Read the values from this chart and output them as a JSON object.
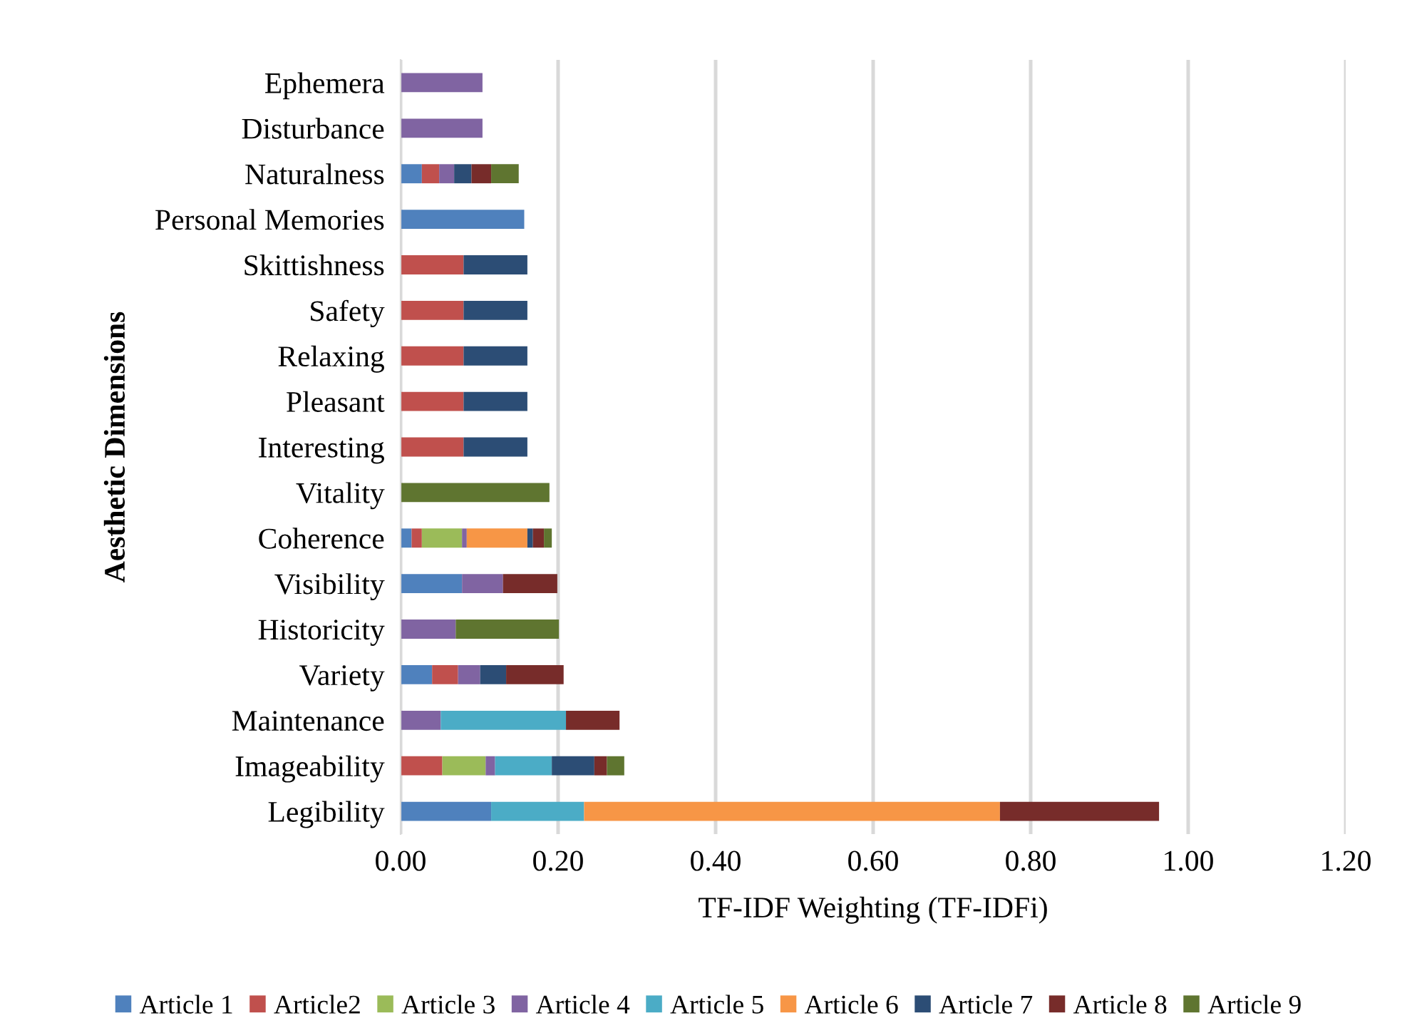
{
  "chart_data": {
    "type": "bar",
    "orientation": "horizontal",
    "stacked": true,
    "xlabel": "TF-IDF Weighting (TF-IDFi)",
    "ylabel": "Aesthetic Dimensions",
    "categories": [
      "Ephemera",
      "Disturbance",
      "Naturalness",
      "Personal Memories",
      "Skittishness",
      "Safety",
      "Relaxing",
      "Pleasant",
      "Interesting",
      "Vitality",
      "Coherence",
      "Visibility",
      "Historicity",
      "Variety",
      "Maintenance",
      "Imageability",
      "Legibility"
    ],
    "series": [
      {
        "name": "Article 1",
        "color": "#4f81bd",
        "values": [
          null,
          null,
          0.027,
          0.157,
          null,
          null,
          null,
          null,
          null,
          null,
          0.014,
          0.078,
          null,
          0.04,
          null,
          null,
          0.115
        ]
      },
      {
        "name": "Article2",
        "color": "#c0504d",
        "values": [
          null,
          null,
          0.022,
          null,
          0.08,
          0.08,
          0.08,
          0.08,
          0.08,
          null,
          0.013,
          null,
          null,
          0.033,
          null,
          0.053,
          null
        ]
      },
      {
        "name": "Article 3",
        "color": "#9bbb59",
        "values": [
          null,
          null,
          null,
          null,
          null,
          null,
          null,
          null,
          null,
          null,
          0.051,
          null,
          null,
          null,
          null,
          0.055,
          null
        ]
      },
      {
        "name": "Article 4",
        "color": "#8064a2",
        "values": [
          0.104,
          0.104,
          0.019,
          null,
          null,
          null,
          null,
          null,
          null,
          null,
          0.006,
          0.052,
          0.07,
          0.028,
          0.051,
          0.012,
          null
        ]
      },
      {
        "name": "Article 5",
        "color": "#4bacc6",
        "values": [
          null,
          null,
          null,
          null,
          null,
          null,
          null,
          null,
          null,
          null,
          null,
          null,
          null,
          null,
          0.159,
          0.072,
          0.118
        ]
      },
      {
        "name": "Article 6",
        "color": "#f79646",
        "values": [
          null,
          null,
          null,
          null,
          null,
          null,
          null,
          null,
          null,
          null,
          0.077,
          null,
          null,
          null,
          null,
          null,
          0.528
        ]
      },
      {
        "name": "Article 7",
        "color": "#2c4d75",
        "values": [
          null,
          null,
          0.022,
          null,
          0.081,
          0.081,
          0.081,
          0.081,
          0.081,
          null,
          0.007,
          null,
          null,
          0.033,
          null,
          0.054,
          null
        ]
      },
      {
        "name": "Article 8",
        "color": "#772c2a",
        "values": [
          null,
          null,
          0.025,
          null,
          null,
          null,
          null,
          null,
          null,
          null,
          0.014,
          0.069,
          null,
          0.073,
          0.068,
          0.016,
          0.202
        ]
      },
      {
        "name": "Article 9",
        "color": "#5f7530",
        "values": [
          null,
          null,
          0.035,
          null,
          null,
          null,
          null,
          null,
          null,
          0.189,
          0.01,
          null,
          0.131,
          null,
          null,
          0.022,
          null
        ]
      }
    ],
    "xlim": [
      0,
      1.2
    ],
    "xticks": [
      {
        "value": 0,
        "label": "0.00"
      },
      {
        "value": 0.2,
        "label": "0.20"
      },
      {
        "value": 0.4,
        "label": "0.40"
      },
      {
        "value": 0.6,
        "label": "0.60"
      },
      {
        "value": 0.8,
        "label": "0.80"
      },
      {
        "value": 1.0,
        "label": "1.00"
      },
      {
        "value": 1.2,
        "label": "1.20"
      }
    ],
    "grid": "x",
    "legend": "bottom"
  }
}
